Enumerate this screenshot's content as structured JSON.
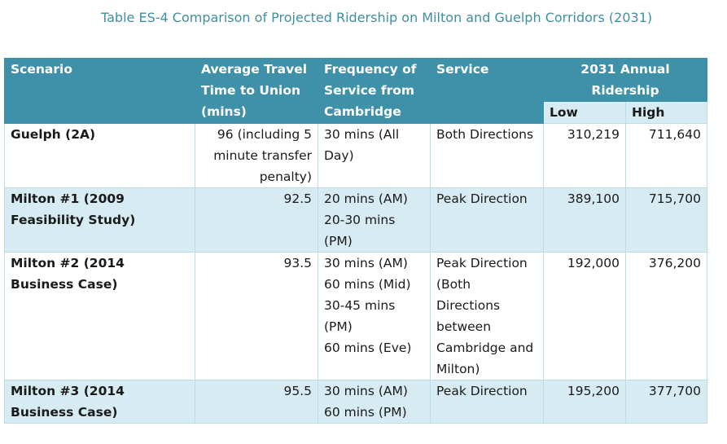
{
  "caption": "Table ES-4 Comparison of Projected Ridership on Milton and Guelph Corridors (2031)",
  "headers": {
    "scenario": "Scenario",
    "travel_time": "Average Travel Time to Union (mins)",
    "frequency": "Frequency of Service from Cambridge",
    "service": "Service",
    "ridership": "2031 Annual Ridership",
    "low": "Low",
    "high": "High"
  },
  "rows": [
    {
      "scenario": "Guelph (2A)",
      "travel_time": "96 (including 5 minute transfer penalty)",
      "frequency": [
        "30 mins (All Day)"
      ],
      "service": "Both Directions",
      "low": "310,219",
      "high": "711,640"
    },
    {
      "scenario": "Milton #1 (2009 Feasibility Study)",
      "travel_time": "92.5",
      "frequency": [
        "20 mins (AM)",
        "20-30 mins (PM)"
      ],
      "service": "Peak Direction",
      "low": "389,100",
      "high": "715,700"
    },
    {
      "scenario": "Milton #2 (2014 Business Case)",
      "travel_time": "93.5",
      "frequency": [
        "30 mins (AM)",
        "60 mins (Mid)",
        "30-45 mins (PM)",
        "60 mins (Eve)"
      ],
      "service": "Peak Direction (Both Directions between Cambridge and Milton)",
      "low": "192,000",
      "high": "376,200"
    },
    {
      "scenario": "Milton #3 (2014 Business Case)",
      "travel_time": "95.5",
      "frequency": [
        "30 mins (AM)",
        "60 mins (PM)"
      ],
      "service": "Peak Direction",
      "low": "195,200",
      "high": "377,700"
    }
  ]
}
